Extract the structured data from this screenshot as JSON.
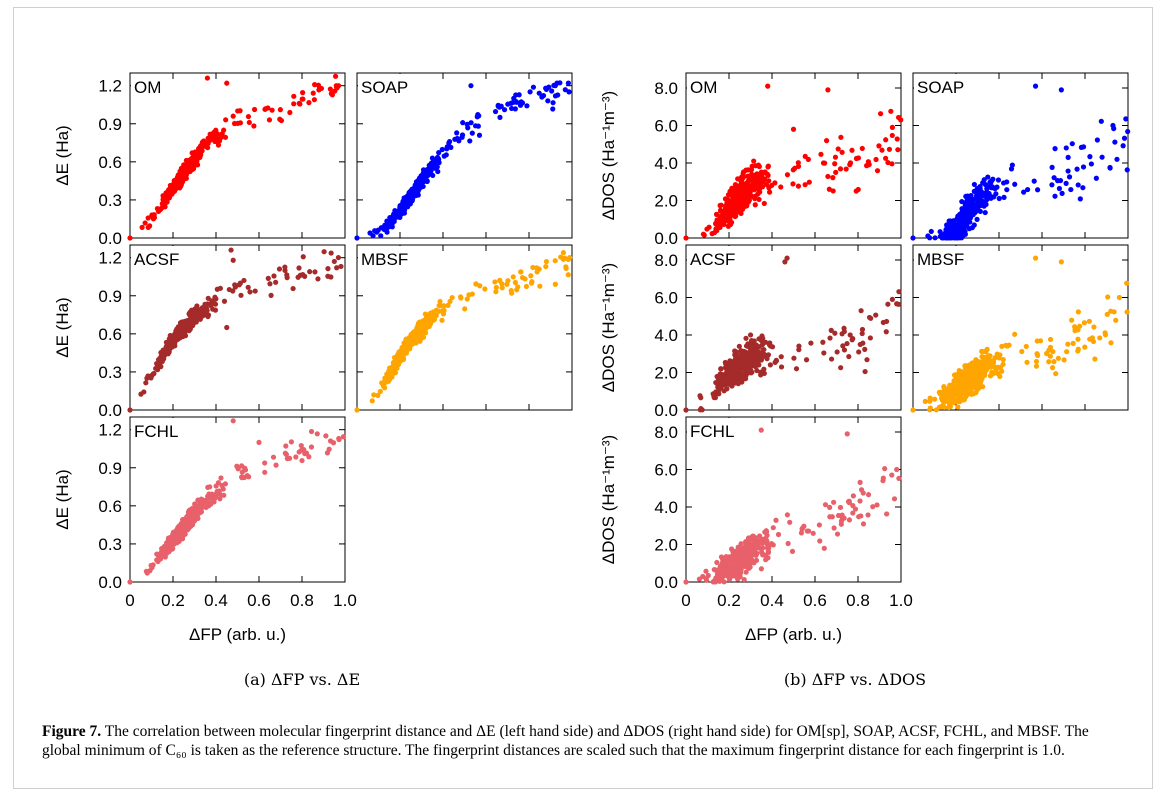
{
  "figure": {
    "subcaptions": {
      "a": "(a) ΔFP vs. ΔE",
      "b": "(b) ΔFP vs. ΔDOS"
    },
    "caption": {
      "label": "Figure 7.",
      "text": " The correlation between molecular fingerprint distance and ΔE (left hand side) and ΔDOS (right hand side) for OM[sp], SOAP, ACSF, FCHL, and MBSF. The global minimum of C₆₀ is taken as the reference structure. The fingerprint distances are scaled such that the maximum fingerprint distance for each fingerprint is 1.0."
    }
  },
  "chart_data": [
    {
      "type": "scatter",
      "group": "a",
      "panel": "OM",
      "color": "#ff0000",
      "ylabel": "ΔE (Ha)",
      "xlim": [
        0,
        1.0
      ],
      "ylim": [
        0,
        1.3
      ],
      "yticks": [
        "0.0",
        "0.3",
        "0.6",
        "0.9",
        "1.2"
      ],
      "xticks": [],
      "trend": {
        "x": [
          0,
          0.05,
          0.1,
          0.15,
          0.2,
          0.25,
          0.3,
          0.35,
          0.4,
          0.45,
          0.5,
          0.6,
          0.7,
          0.8,
          0.9,
          1.0
        ],
        "y": [
          0,
          0.06,
          0.14,
          0.26,
          0.39,
          0.51,
          0.62,
          0.72,
          0.8,
          0.87,
          0.92,
          0.98,
          1.02,
          1.08,
          1.12,
          1.15
        ]
      },
      "spread": 0.06,
      "outliers": [
        {
          "x": 0,
          "y": 0
        },
        {
          "x": 0.36,
          "y": 1.26
        },
        {
          "x": 0.45,
          "y": 1.22
        },
        {
          "x": 0.48,
          "y": 0.96
        },
        {
          "x": 0.97,
          "y": 1.2
        }
      ]
    },
    {
      "type": "scatter",
      "group": "a",
      "panel": "SOAP",
      "color": "#0000ff",
      "ylabel": "",
      "xlim": [
        0,
        1.0
      ],
      "ylim": [
        0,
        1.3
      ],
      "yticks": [],
      "xticks": [],
      "trend": {
        "x": [
          0,
          0.1,
          0.15,
          0.2,
          0.25,
          0.3,
          0.35,
          0.4,
          0.45,
          0.5,
          0.55,
          0.6,
          0.7,
          0.8,
          0.9,
          1.0
        ],
        "y": [
          0,
          0.05,
          0.12,
          0.22,
          0.33,
          0.45,
          0.56,
          0.66,
          0.75,
          0.83,
          0.9,
          0.96,
          1.04,
          1.1,
          1.14,
          1.15
        ]
      },
      "spread": 0.06,
      "outliers": [
        {
          "x": 0,
          "y": 0
        },
        {
          "x": 0.53,
          "y": 1.2
        },
        {
          "x": 0.93,
          "y": 1.22
        }
      ]
    },
    {
      "type": "scatter",
      "group": "a",
      "panel": "ACSF",
      "color": "#a52a2a",
      "ylabel": "ΔE (Ha)",
      "xlim": [
        0,
        1.0
      ],
      "ylim": [
        0,
        1.3
      ],
      "yticks": [
        "0.0",
        "0.3",
        "0.6",
        "0.9",
        "1.2"
      ],
      "xticks": [],
      "trend": {
        "x": [
          0,
          0.05,
          0.1,
          0.15,
          0.2,
          0.25,
          0.3,
          0.35,
          0.4,
          0.45,
          0.5,
          0.6,
          0.7,
          0.8,
          0.9,
          1.0
        ],
        "y": [
          0,
          0.12,
          0.28,
          0.42,
          0.55,
          0.65,
          0.74,
          0.8,
          0.85,
          0.9,
          0.95,
          1.0,
          1.05,
          1.1,
          1.13,
          1.15
        ]
      },
      "spread": 0.07,
      "outliers": [
        {
          "x": 0,
          "y": 0
        },
        {
          "x": 0.47,
          "y": 1.26
        },
        {
          "x": 0.48,
          "y": 1.18
        },
        {
          "x": 0.45,
          "y": 0.65
        }
      ]
    },
    {
      "type": "scatter",
      "group": "a",
      "panel": "MBSF",
      "color": "#ffa500",
      "ylabel": "",
      "xlim": [
        0,
        1.0
      ],
      "ylim": [
        0,
        1.3
      ],
      "yticks": [],
      "xticks": [],
      "trend": {
        "x": [
          0,
          0.05,
          0.1,
          0.15,
          0.2,
          0.25,
          0.3,
          0.35,
          0.4,
          0.45,
          0.5,
          0.6,
          0.7,
          0.8,
          0.9,
          1.0
        ],
        "y": [
          0,
          0.06,
          0.16,
          0.28,
          0.42,
          0.54,
          0.64,
          0.73,
          0.8,
          0.86,
          0.9,
          0.96,
          1.0,
          1.06,
          1.12,
          1.15
        ]
      },
      "spread": 0.065,
      "outliers": [
        {
          "x": 0,
          "y": 0
        },
        {
          "x": 0.96,
          "y": 1.24
        }
      ]
    },
    {
      "type": "scatter",
      "group": "a",
      "panel": "FCHL",
      "color": "#e8606a",
      "ylabel": "ΔE (Ha)",
      "xlabel": "ΔFP (arb. u.)",
      "xlim": [
        0,
        1.0
      ],
      "ylim": [
        0,
        1.3
      ],
      "yticks": [
        "0.0",
        "0.3",
        "0.6",
        "0.9",
        "1.2"
      ],
      "xticks": [
        "0",
        "0.2",
        "0.4",
        "0.6",
        "0.8",
        "1.0"
      ],
      "trend": {
        "x": [
          0,
          0.05,
          0.1,
          0.15,
          0.2,
          0.25,
          0.3,
          0.35,
          0.4,
          0.45,
          0.5,
          0.6,
          0.7,
          0.8,
          0.9,
          1.0
        ],
        "y": [
          0,
          0.04,
          0.12,
          0.22,
          0.33,
          0.44,
          0.54,
          0.63,
          0.7,
          0.76,
          0.82,
          0.9,
          0.98,
          1.05,
          1.11,
          1.15
        ]
      },
      "spread": 0.07,
      "outliers": [
        {
          "x": 0,
          "y": 0
        },
        {
          "x": 0.48,
          "y": 1.27
        },
        {
          "x": 0.6,
          "y": 1.1
        }
      ]
    },
    {
      "type": "scatter",
      "group": "b",
      "panel": "OM",
      "color": "#ff0000",
      "ylabel": "ΔDOS (Ha⁻¹m⁻³)",
      "xlim": [
        0,
        1.0
      ],
      "ylim": [
        0,
        8.8
      ],
      "yticks": [
        "0.0",
        "2.0",
        "4.0",
        "6.0",
        "8.0"
      ],
      "xticks": [],
      "trend": {
        "x": [
          0,
          0.1,
          0.2,
          0.25,
          0.3,
          0.35,
          0.4,
          0.45,
          0.5,
          0.6,
          0.7,
          0.8,
          0.9,
          1.0
        ],
        "y": [
          0,
          0.3,
          1.5,
          2.3,
          2.8,
          3.1,
          3.4,
          3.5,
          3.6,
          3.6,
          3.7,
          4.0,
          4.6,
          5.3
        ]
      },
      "spread": 0.9,
      "outliers": [
        {
          "x": 0,
          "y": 0
        },
        {
          "x": 0.38,
          "y": 8.1
        },
        {
          "x": 0.66,
          "y": 7.9
        },
        {
          "x": 0.5,
          "y": 5.8
        },
        {
          "x": 0.96,
          "y": 5.9
        }
      ]
    },
    {
      "type": "scatter",
      "group": "b",
      "panel": "SOAP",
      "color": "#0000ff",
      "ylabel": "",
      "xlim": [
        0,
        1.0
      ],
      "ylim": [
        0,
        8.8
      ],
      "yticks": [],
      "xticks": [],
      "trend": {
        "x": [
          0,
          0.1,
          0.2,
          0.25,
          0.3,
          0.35,
          0.4,
          0.45,
          0.5,
          0.6,
          0.7,
          0.8,
          0.9,
          1.0
        ],
        "y": [
          0,
          0.1,
          0.4,
          1.2,
          2.0,
          2.5,
          2.8,
          3.0,
          3.1,
          3.2,
          3.5,
          3.9,
          4.6,
          5.2
        ]
      },
      "spread": 0.9,
      "outliers": [
        {
          "x": 0,
          "y": 0
        },
        {
          "x": 0.57,
          "y": 8.1
        },
        {
          "x": 0.69,
          "y": 7.9
        },
        {
          "x": 0.93,
          "y": 6.0
        }
      ]
    },
    {
      "type": "scatter",
      "group": "b",
      "panel": "ACSF",
      "color": "#a52a2a",
      "ylabel": "ΔDOS (Ha⁻¹m⁻³)",
      "xlim": [
        0,
        1.0
      ],
      "ylim": [
        0,
        8.8
      ],
      "yticks": [
        "0.0",
        "2.0",
        "4.0",
        "6.0",
        "8.0"
      ],
      "xticks": [],
      "trend": {
        "x": [
          0,
          0.1,
          0.15,
          0.2,
          0.25,
          0.3,
          0.35,
          0.4,
          0.45,
          0.5,
          0.6,
          0.7,
          0.8,
          0.9,
          1.0
        ],
        "y": [
          0,
          0.6,
          1.3,
          1.9,
          2.4,
          2.8,
          3.0,
          3.2,
          3.0,
          2.6,
          3.0,
          3.5,
          4.0,
          4.6,
          5.3
        ]
      },
      "spread": 0.9,
      "outliers": [
        {
          "x": 0,
          "y": 0
        },
        {
          "x": 0.47,
          "y": 8.1
        },
        {
          "x": 0.46,
          "y": 7.9
        },
        {
          "x": 0.96,
          "y": 5.9
        }
      ]
    },
    {
      "type": "scatter",
      "group": "b",
      "panel": "MBSF",
      "color": "#ffa500",
      "ylabel": "",
      "xlim": [
        0,
        1.0
      ],
      "ylim": [
        0,
        8.8
      ],
      "yticks": [],
      "xticks": [],
      "trend": {
        "x": [
          0,
          0.1,
          0.2,
          0.25,
          0.3,
          0.35,
          0.4,
          0.45,
          0.5,
          0.6,
          0.7,
          0.8,
          0.9,
          1.0
        ],
        "y": [
          0,
          0.3,
          1.1,
          1.6,
          2.0,
          2.4,
          2.7,
          3.0,
          3.0,
          3.0,
          3.4,
          3.9,
          4.5,
          5.2
        ]
      },
      "spread": 0.9,
      "outliers": [
        {
          "x": 0,
          "y": 0
        },
        {
          "x": 0.57,
          "y": 8.1
        },
        {
          "x": 0.69,
          "y": 7.9
        },
        {
          "x": 0.96,
          "y": 6.0
        }
      ]
    },
    {
      "type": "scatter",
      "group": "b",
      "panel": "FCHL",
      "color": "#e8606a",
      "ylabel": "ΔDOS (Ha⁻¹m⁻³)",
      "xlabel": "ΔFP (arb. u.)",
      "xlim": [
        0,
        1.0
      ],
      "ylim": [
        0,
        8.8
      ],
      "yticks": [
        "0.0",
        "2.0",
        "4.0",
        "6.0",
        "8.0"
      ],
      "xticks": [
        "0",
        "0.2",
        "0.4",
        "0.6",
        "0.8",
        "1.0"
      ],
      "trend": {
        "x": [
          0,
          0.1,
          0.2,
          0.3,
          0.35,
          0.4,
          0.45,
          0.5,
          0.6,
          0.7,
          0.8,
          0.9,
          1.0
        ],
        "y": [
          0,
          0.2,
          0.8,
          1.5,
          2.0,
          2.4,
          2.6,
          2.8,
          3.0,
          3.4,
          4.0,
          4.6,
          5.3
        ]
      },
      "spread": 0.9,
      "outliers": [
        {
          "x": 0,
          "y": 0
        },
        {
          "x": 0.35,
          "y": 8.1
        },
        {
          "x": 0.75,
          "y": 7.9
        },
        {
          "x": 0.98,
          "y": 6.0
        }
      ]
    }
  ]
}
